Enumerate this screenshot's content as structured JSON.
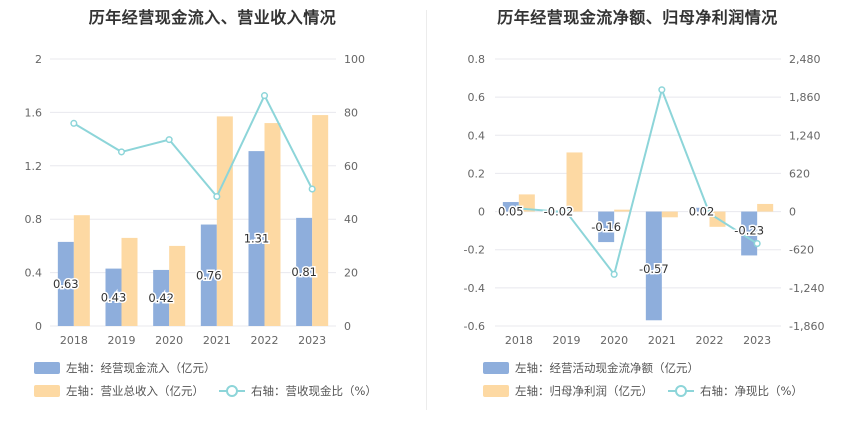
{
  "colors": {
    "bar_primary": "#8eaedc",
    "bar_secondary": "#fdd9a3",
    "line": "#8dd5d9",
    "grid": "#e8e8ee",
    "axis_text": "#666666",
    "label_text": "#333333"
  },
  "charts": [
    {
      "id": "left",
      "title": "历年经营现金流入、营业收入情况",
      "legend": {
        "items": [
          {
            "label": "左轴：经营现金流入（亿元）",
            "kind": "bar",
            "color_key": "bar_primary"
          },
          {
            "label": "左轴：营业总收入（亿元）",
            "kind": "bar",
            "color_key": "bar_secondary"
          },
          {
            "label": "右轴：营收现金比（%）",
            "kind": "line",
            "color_key": "line"
          }
        ]
      },
      "left_axis": {
        "ticks": [
          "0",
          "0.4",
          "0.8",
          "1.2",
          "1.6",
          "2"
        ]
      },
      "right_axis": {
        "ticks": [
          "0",
          "20",
          "40",
          "60",
          "80",
          "100"
        ]
      }
    },
    {
      "id": "right",
      "title": "历年经营现金流净额、归母净利润情况",
      "legend": {
        "items": [
          {
            "label": "左轴：经营活动现金流净额（亿元）",
            "kind": "bar",
            "color_key": "bar_primary"
          },
          {
            "label": "左轴：归母净利润（亿元）",
            "kind": "bar",
            "color_key": "bar_secondary"
          },
          {
            "label": "右轴：净现比（%）",
            "kind": "line",
            "color_key": "line"
          }
        ]
      },
      "left_axis": {
        "ticks": [
          "-0.6",
          "-0.4",
          "-0.2",
          "0",
          "0.2",
          "0.4",
          "0.6",
          "0.8"
        ]
      },
      "right_axis": {
        "ticks": [
          "-1,860",
          "-1,240",
          "-620",
          "0",
          "620",
          "1,240",
          "1,860",
          "2,480"
        ]
      }
    }
  ],
  "chart_data": [
    {
      "type": "bar",
      "title": "历年经营现金流入、营业收入情况",
      "categories": [
        "2018",
        "2019",
        "2020",
        "2021",
        "2022",
        "2023"
      ],
      "ylim_left": [
        0,
        2
      ],
      "ylim_right": [
        0,
        100
      ],
      "grid": true,
      "legend_position": "bottom",
      "series": [
        {
          "name": "左轴：经营现金流入（亿元）",
          "kind": "bar",
          "axis": "left",
          "values": [
            0.63,
            0.43,
            0.42,
            0.76,
            1.31,
            0.81
          ],
          "labels": [
            "0.63",
            "0.43",
            "0.42",
            "0.76",
            "1.31",
            "0.81"
          ]
        },
        {
          "name": "左轴：营业总收入（亿元）",
          "kind": "bar",
          "axis": "left",
          "values": [
            0.83,
            0.66,
            0.6,
            1.57,
            1.52,
            1.58
          ]
        },
        {
          "name": "右轴：营收现金比（%）",
          "kind": "line",
          "axis": "right",
          "values": [
            75.9,
            65.2,
            69.8,
            48.5,
            86.3,
            51.3
          ]
        }
      ]
    },
    {
      "type": "bar",
      "title": "历年经营现金流净额、归母净利润情况",
      "categories": [
        "2018",
        "2019",
        "2020",
        "2021",
        "2022",
        "2023"
      ],
      "ylim_left": [
        -0.6,
        0.8
      ],
      "ylim_right": [
        -1860,
        2480
      ],
      "grid": true,
      "legend_position": "bottom",
      "series": [
        {
          "name": "左轴：经营活动现金流净额（亿元）",
          "kind": "bar",
          "axis": "left",
          "values": [
            0.05,
            -0.02,
            -0.16,
            -0.57,
            0.02,
            -0.23
          ],
          "labels": [
            "0.05",
            "-0.02",
            "-0.16",
            "-0.57",
            "0.02",
            "-0.23"
          ]
        },
        {
          "name": "左轴：归母净利润（亿元）",
          "kind": "bar",
          "axis": "left",
          "values": [
            0.09,
            0.31,
            0.01,
            -0.03,
            -0.08,
            0.04
          ]
        },
        {
          "name": "右轴：净现比（%）",
          "kind": "line",
          "axis": "right",
          "values": [
            50,
            -10,
            -1020,
            1980,
            -30,
            -520
          ]
        }
      ]
    }
  ]
}
